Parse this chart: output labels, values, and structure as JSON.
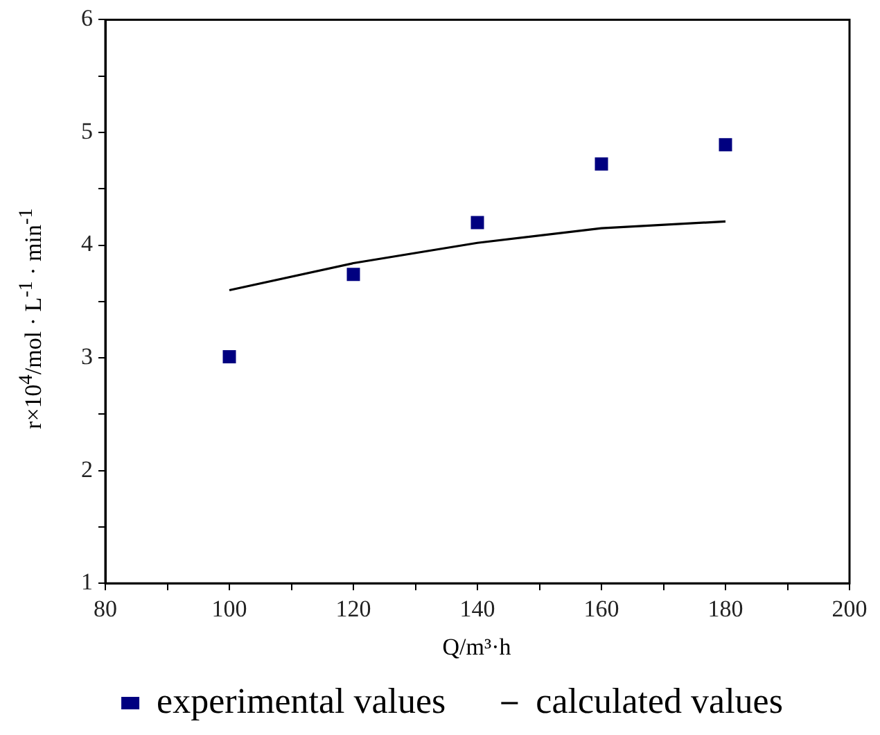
{
  "chart_data": {
    "type": "scatter",
    "xlabel": "Q/m³·h",
    "ylabel": "r×10$^{4}$/mol · L$^{-1}$ · min$^{-1}$",
    "xlim": [
      80,
      200
    ],
    "xticks": [
      80,
      {
        "value": 90,
        "label": null
      },
      100,
      {
        "value": 110,
        "label": null
      },
      120,
      {
        "value": 130,
        "label": null
      },
      140,
      {
        "value": 150,
        "label": null
      },
      160,
      {
        "value": 170,
        "label": null
      },
      180,
      {
        "value": 190,
        "label": null
      },
      200
    ],
    "ylim": [
      1,
      6
    ],
    "yticks": [
      1,
      {
        "value": 1.5,
        "label": null
      },
      2,
      {
        "value": 2.5,
        "label": null
      },
      3,
      {
        "value": 3.5,
        "label": null
      },
      4,
      {
        "value": 4.5,
        "label": null
      },
      5,
      {
        "value": 5.5,
        "label": null
      },
      6
    ],
    "x": [
      100,
      120,
      140,
      160,
      180
    ],
    "series": [
      {
        "name": "experimental values",
        "color": "#000080",
        "marker": "square",
        "values": [
          3.01,
          3.74,
          4.2,
          4.72,
          4.89
        ]
      },
      {
        "name": "calculated values",
        "type": "line",
        "color": "#000000",
        "marker": "none",
        "line_style": "solid",
        "values": [
          3.6,
          3.84,
          4.02,
          4.15,
          4.21
        ]
      }
    ],
    "legend": "bottom",
    "grid": false
  }
}
